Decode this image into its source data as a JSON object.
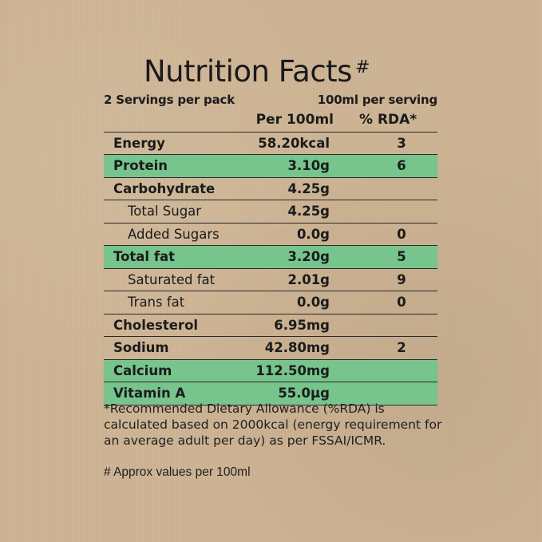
{
  "title": "Nutrition Facts",
  "title_mark": "#",
  "servings": {
    "left": "2 Servings per pack",
    "right": "100ml per serving"
  },
  "header": {
    "col_value": "Per 100ml",
    "col_rda": "% RDA*"
  },
  "highlight_color": "#77c48d",
  "rows": [
    {
      "label": "Energy",
      "value": "58.20kcal",
      "rda": "3"
    },
    {
      "label": "Protein",
      "value": "3.10g",
      "rda": "6"
    },
    {
      "label": "Carbohydrate",
      "value": "4.25g",
      "rda": ""
    },
    {
      "label": "Total Sugar",
      "value": "4.25g",
      "rda": ""
    },
    {
      "label": "Added Sugars",
      "value": "0.0g",
      "rda": "0"
    },
    {
      "label": "Total fat",
      "value": "3.20g",
      "rda": "5"
    },
    {
      "label": "Saturated fat",
      "value": "2.01g",
      "rda": "9"
    },
    {
      "label": "Trans fat",
      "value": "0.0g",
      "rda": "0"
    },
    {
      "label": "Cholesterol",
      "value": "6.95mg",
      "rda": ""
    },
    {
      "label": "Sodium",
      "value": "42.80mg",
      "rda": "2"
    },
    {
      "label": "Calcium",
      "value": "112.50mg",
      "rda": ""
    },
    {
      "label": "Vitamin A",
      "value": "55.0µg",
      "rda": ""
    }
  ],
  "footnote": "*Recommended Dietary Allowance (%RDA) is calculated based on 2000kcal (energy requirement for an average adult per day) as per FSSAI/ICMR.",
  "footnote2": "# Approx values per 100ml"
}
